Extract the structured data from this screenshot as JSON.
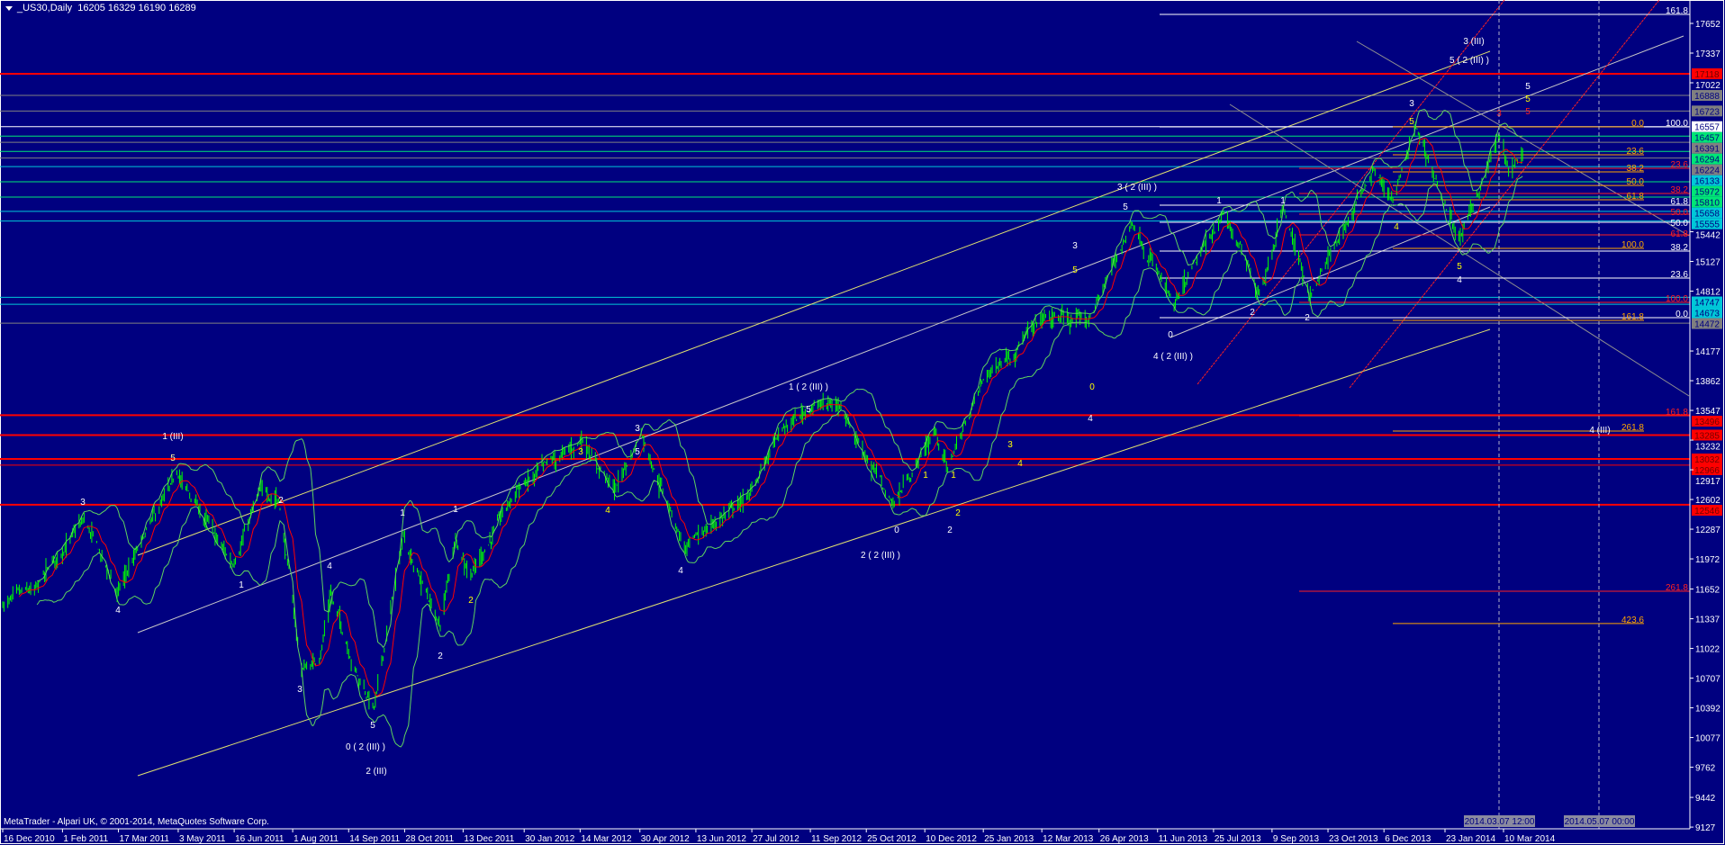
{
  "header": {
    "symbol": "_US30,Daily",
    "ohlc": "16205 16329 16190 16289"
  },
  "footer": {
    "copyright": "MetaTrader - Alpari UK, © 2001-2014, MetaQuotes Software Corp."
  },
  "colors": {
    "background": "#000080",
    "bars": "#00ff00",
    "ma": "#ff0000",
    "bands": "#5fd35f",
    "axis": "#ffffff",
    "red_level": "#ff0000",
    "gray_level": "#808080",
    "green_level": "#00e676",
    "cyan_level": "#00c8d8",
    "fib_white": "#ffffff",
    "fib_orange": "#ffa500",
    "fib_red": "#ff2020",
    "channel": "#e0e070"
  },
  "crosshair": {
    "time_labels": [
      "2014.03.07 12:00",
      "2014.05.07 00:00"
    ]
  },
  "chart_data": {
    "type": "bar",
    "title": "_US30,Daily",
    "price_ticks": [
      "17652",
      "17337",
      "17022",
      "15442",
      "15127",
      "14812",
      "14177",
      "13862",
      "13547",
      "13232",
      "12917",
      "12602",
      "12287",
      "11972",
      "11652",
      "11337",
      "11022",
      "10707",
      "10392",
      "10077",
      "9762",
      "9442",
      "9127"
    ],
    "ylim": [
      9127,
      17652
    ],
    "date_ticks": [
      "16 Dec 2010",
      "1 Feb 2011",
      "17 Mar 2011",
      "3 May 2011",
      "16 Jun 2011",
      "1 Aug 2011",
      "14 Sep 2011",
      "28 Oct 2011",
      "13 Dec 2011",
      "30 Jan 2012",
      "14 Mar 2012",
      "30 Apr 2012",
      "13 Jun 2012",
      "27 Jul 2012",
      "11 Sep 2012",
      "25 Oct 2012",
      "10 Dec 2012",
      "25 Jan 2013",
      "12 Mar 2013",
      "26 Apr 2013",
      "11 Jun 2013",
      "25 Jul 2013",
      "9 Sep 2013",
      "23 Oct 2013",
      "6 Dec 2013",
      "23 Jan 2014",
      "10 Mar 2014"
    ],
    "price_path": [
      [
        "2010-12-16",
        11480
      ],
      [
        "2011-01-10",
        11650
      ],
      [
        "2011-02-18",
        12390
      ],
      [
        "2011-03-16",
        11620
      ],
      [
        "2011-05-02",
        12876
      ],
      [
        "2011-06-15",
        11900
      ],
      [
        "2011-07-07",
        12720
      ],
      [
        "2011-07-21",
        12600
      ],
      [
        "2011-08-08",
        10800
      ],
      [
        "2011-08-22",
        10900
      ],
      [
        "2011-08-31",
        11600
      ],
      [
        "2011-09-22",
        10700
      ],
      [
        "2011-10-04",
        10400
      ],
      [
        "2011-10-27",
        12200
      ],
      [
        "2011-11-25",
        11250
      ],
      [
        "2011-12-07",
        12200
      ],
      [
        "2011-12-19",
        11800
      ],
      [
        "2012-01-24",
        12700
      ],
      [
        "2012-03-16",
        13230
      ],
      [
        "2012-04-10",
        12700
      ],
      [
        "2012-05-01",
        13300
      ],
      [
        "2012-06-04",
        12100
      ],
      [
        "2012-07-25",
        12650
      ],
      [
        "2012-08-17",
        13300
      ],
      [
        "2012-09-14",
        13600
      ],
      [
        "2012-10-05",
        13600
      ],
      [
        "2012-10-23",
        13100
      ],
      [
        "2012-11-15",
        12540
      ],
      [
        "2012-12-18",
        13330
      ],
      [
        "2012-12-28",
        12940
      ],
      [
        "2013-01-25",
        13880
      ],
      [
        "2013-03-14",
        14540
      ],
      [
        "2013-04-18",
        14500
      ],
      [
        "2013-05-22",
        15540
      ],
      [
        "2013-06-24",
        14660
      ],
      [
        "2013-08-02",
        15640
      ],
      [
        "2013-08-30",
        14780
      ],
      [
        "2013-09-18",
        15700
      ],
      [
        "2013-10-09",
        14760
      ],
      [
        "2013-11-28",
        16100
      ],
      [
        "2013-12-13",
        15750
      ],
      [
        "2013-12-31",
        16570
      ],
      [
        "2014-02-03",
        15340
      ],
      [
        "2014-03-07",
        16460
      ],
      [
        "2014-03-14",
        16060
      ],
      [
        "2014-03-25",
        16289
      ]
    ],
    "price_levels": [
      {
        "price": 17118,
        "label": "17118",
        "color": "#ff0000"
      },
      {
        "price": 16888,
        "label": "16888",
        "color": "#808080"
      },
      {
        "price": 16723,
        "label": "16723",
        "color": "#808080"
      },
      {
        "price": 16557,
        "label": "16557",
        "color": "#ffffff"
      },
      {
        "price": 16457,
        "label": "16457",
        "color": "#00e676"
      },
      {
        "price": 16391,
        "label": "16391",
        "color": "#808080"
      },
      {
        "price": 16294,
        "label": "16294",
        "color": "#00e676"
      },
      {
        "price": 16224,
        "label": "16224",
        "color": "#808080"
      },
      {
        "price": 16133,
        "label": "16133",
        "color": "#00c8d8"
      },
      {
        "price": 15972,
        "label": "15972",
        "color": "#00e676"
      },
      {
        "price": 15810,
        "label": "15810",
        "color": "#00e676"
      },
      {
        "price": 15658,
        "label": "15658",
        "color": "#00c8d8"
      },
      {
        "price": 15555,
        "label": "15555",
        "color": "#00c8d8"
      },
      {
        "price": 14747,
        "label": "14747",
        "color": "#00c8d8"
      },
      {
        "price": 14673,
        "label": "14673",
        "color": "#00c8d8"
      },
      {
        "price": 14472,
        "label": "14472",
        "color": "#808080"
      },
      {
        "price": 13496,
        "label": "13496",
        "color": "#ff0000"
      },
      {
        "price": 13285,
        "label": "13285",
        "color": "#ff0000"
      },
      {
        "price": 13032,
        "label": "13032",
        "color": "#ff0000"
      },
      {
        "price": 12966,
        "label": "12966",
        "color": "#ff0000"
      },
      {
        "price": 12546,
        "label": "12546",
        "color": "#ff0000"
      }
    ],
    "fib_white": [
      [
        "161.8",
        17747
      ],
      [
        "100.0",
        16554
      ],
      [
        "61.8",
        15724
      ],
      [
        "50.0",
        15543
      ],
      [
        "38.2",
        15237
      ],
      [
        "23.6",
        14951
      ],
      [
        "0.0",
        14531
      ]
    ],
    "fib_orange": [
      [
        "0.0",
        16554
      ],
      [
        "23.6",
        16258
      ],
      [
        "38.2",
        16077
      ],
      [
        "50.0",
        15933
      ],
      [
        "61.8",
        15781
      ],
      [
        "100.0",
        15266
      ],
      [
        "161.8",
        14502
      ],
      [
        "261.8",
        13328
      ],
      [
        "423.6",
        11286
      ]
    ],
    "fib_red": [
      [
        "23.6",
        16115
      ],
      [
        "38.2",
        15848
      ],
      [
        "50.0",
        15628
      ],
      [
        "61.8",
        15409
      ],
      [
        "100.0",
        14693
      ],
      [
        "161.8",
        13490
      ],
      [
        "261.8",
        11629
      ]
    ],
    "wave_labels": [
      {
        "text": "1 (III)",
        "color": "#ffffff"
      },
      {
        "text": "5",
        "color": "#ffffa0"
      },
      {
        "text": "3",
        "color": "#ffffff"
      },
      {
        "text": "4",
        "color": "#ffffff"
      },
      {
        "text": "2",
        "color": "#ffffff"
      },
      {
        "text": "1",
        "color": "#ffffff"
      },
      {
        "text": "4",
        "color": "#ffffff"
      },
      {
        "text": "3",
        "color": "#ffffff"
      },
      {
        "text": "5",
        "color": "#ffffff"
      },
      {
        "text": "0 ( 2 (III) )",
        "color": "#ffffff"
      },
      {
        "text": "2 (III)",
        "color": "#ffffff"
      },
      {
        "text": "1",
        "color": "#ffffff"
      },
      {
        "text": "1",
        "color": "#ffffff"
      },
      {
        "text": "2",
        "color": "#ffffff"
      },
      {
        "text": "2",
        "color": "#ffff00"
      },
      {
        "text": "3",
        "color": "#ffffff"
      },
      {
        "text": "3",
        "color": "#ffff00"
      },
      {
        "text": "5",
        "color": "#ffffff"
      },
      {
        "text": "4",
        "color": "#ffff00"
      },
      {
        "text": "4",
        "color": "#ffffff"
      },
      {
        "text": "1 ( 2 (III) )",
        "color": "#ffffff"
      },
      {
        "text": "5",
        "color": "#ffffff"
      },
      {
        "text": "1",
        "color": "#ffff00"
      },
      {
        "text": "1",
        "color": "#ffff00"
      },
      {
        "text": "2",
        "color": "#ffff00"
      },
      {
        "text": "2",
        "color": "#ffffff"
      },
      {
        "text": "0",
        "color": "#ffffff"
      },
      {
        "text": "2 ( 2 (III) )",
        "color": "#ffffff"
      },
      {
        "text": "3",
        "color": "#ffff00"
      },
      {
        "text": "4",
        "color": "#ffff00"
      },
      {
        "text": "0",
        "color": "#ffff00"
      },
      {
        "text": "4",
        "color": "#ffffff"
      },
      {
        "text": "3",
        "color": "#ffffff"
      },
      {
        "text": "5",
        "color": "#ffff00"
      },
      {
        "text": "5",
        "color": "#ffffff"
      },
      {
        "text": "3 ( 2 (III) )",
        "color": "#ffffff"
      },
      {
        "text": "1",
        "color": "#ffffff"
      },
      {
        "text": "0",
        "color": "#ffffff"
      },
      {
        "text": "4 ( 2 (III) )",
        "color": "#ffffff"
      },
      {
        "text": "2",
        "color": "#ffffff"
      },
      {
        "text": "1",
        "color": "#ffffff"
      },
      {
        "text": "2",
        "color": "#ffffff"
      },
      {
        "text": "3",
        "color": "#ffffff"
      },
      {
        "text": "5",
        "color": "#ffff00"
      },
      {
        "text": "4",
        "color": "#ffff00"
      },
      {
        "text": "5",
        "color": "#ffff00"
      },
      {
        "text": "4",
        "color": "#ffffff"
      },
      {
        "text": "3 (III)",
        "color": "#ffffff"
      },
      {
        "text": "5 ( 2 (III) )",
        "color": "#ffffff"
      },
      {
        "text": "5",
        "color": "#ffffff"
      },
      {
        "text": "5",
        "color": "#ffff00"
      },
      {
        "text": "5",
        "color": "#ff2020"
      },
      {
        "text": "3",
        "color": "#ff2020"
      },
      {
        "text": "4 (III)",
        "color": "#ffffff"
      }
    ]
  }
}
